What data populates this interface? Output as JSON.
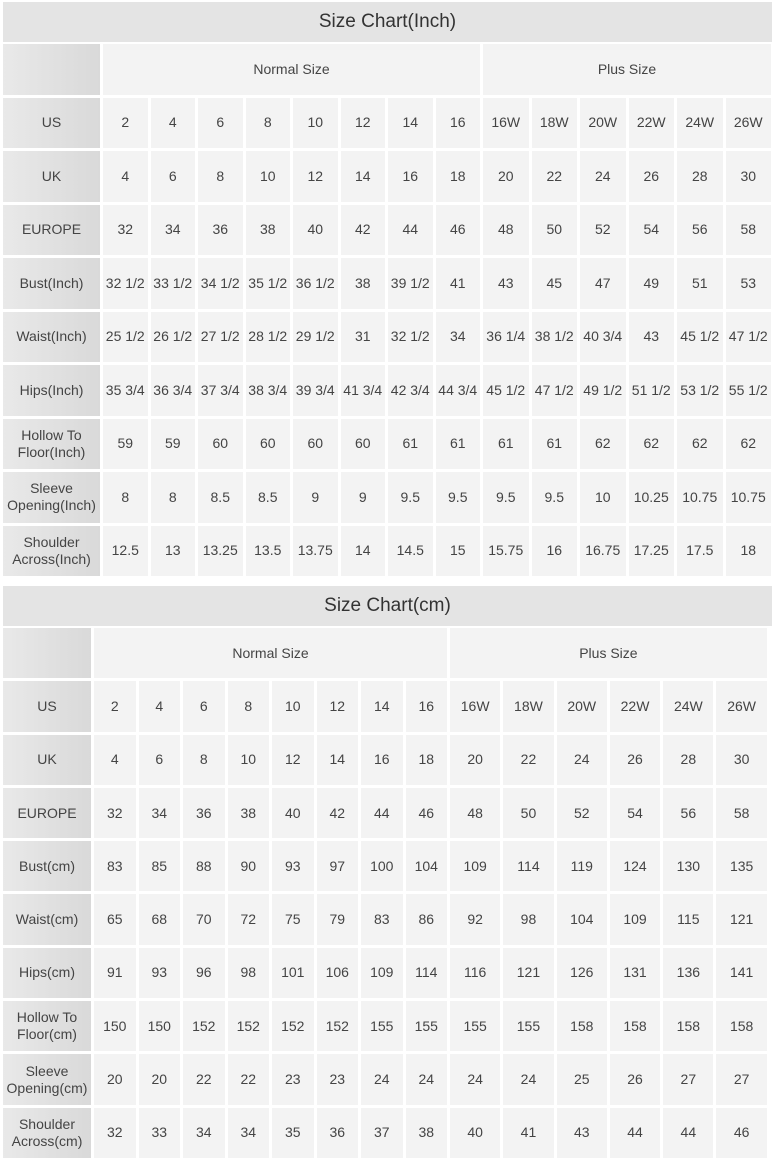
{
  "tables": [
    {
      "title": "Size Chart(Inch)",
      "normal_label": "Normal Size",
      "plus_label": "Plus Size",
      "rows": [
        {
          "label": "US",
          "values": [
            "2",
            "4",
            "6",
            "8",
            "10",
            "12",
            "14",
            "16",
            "16W",
            "18W",
            "20W",
            "22W",
            "24W",
            "26W"
          ]
        },
        {
          "label": "UK",
          "values": [
            "4",
            "6",
            "8",
            "10",
            "12",
            "14",
            "16",
            "18",
            "20",
            "22",
            "24",
            "26",
            "28",
            "30"
          ]
        },
        {
          "label": "EUROPE",
          "values": [
            "32",
            "34",
            "36",
            "38",
            "40",
            "42",
            "44",
            "46",
            "48",
            "50",
            "52",
            "54",
            "56",
            "58"
          ]
        },
        {
          "label": "Bust(Inch)",
          "values": [
            "32 1/2",
            "33 1/2",
            "34 1/2",
            "35 1/2",
            "36 1/2",
            "38",
            "39 1/2",
            "41",
            "43",
            "45",
            "47",
            "49",
            "51",
            "53"
          ]
        },
        {
          "label": "Waist(Inch)",
          "values": [
            "25 1/2",
            "26 1/2",
            "27 1/2",
            "28 1/2",
            "29 1/2",
            "31",
            "32 1/2",
            "34",
            "36 1/4",
            "38 1/2",
            "40 3/4",
            "43",
            "45 1/2",
            "47 1/2"
          ]
        },
        {
          "label": "Hips(Inch)",
          "values": [
            "35 3/4",
            "36 3/4",
            "37 3/4",
            "38 3/4",
            "39 3/4",
            "41 3/4",
            "42 3/4",
            "44 3/4",
            "45 1/2",
            "47 1/2",
            "49 1/2",
            "51 1/2",
            "53 1/2",
            "55 1/2"
          ]
        },
        {
          "label": "Hollow To Floor(Inch)",
          "values": [
            "59",
            "59",
            "60",
            "60",
            "60",
            "60",
            "61",
            "61",
            "61",
            "61",
            "62",
            "62",
            "62",
            "62"
          ]
        },
        {
          "label": "Sleeve Opening(Inch)",
          "values": [
            "8",
            "8",
            "8.5",
            "8.5",
            "9",
            "9",
            "9.5",
            "9.5",
            "9.5",
            "9.5",
            "10",
            "10.25",
            "10.75",
            "10.75"
          ]
        },
        {
          "label": "Shoulder Across(Inch)",
          "values": [
            "12.5",
            "13",
            "13.25",
            "13.5",
            "13.75",
            "14",
            "14.5",
            "15",
            "15.75",
            "16",
            "16.75",
            "17.25",
            "17.5",
            "18"
          ]
        }
      ]
    },
    {
      "title": "Size Chart(cm)",
      "normal_label": "Normal Size",
      "plus_label": "Plus Size",
      "rows": [
        {
          "label": "US",
          "values": [
            "2",
            "4",
            "6",
            "8",
            "10",
            "12",
            "14",
            "16",
            "16W",
            "18W",
            "20W",
            "22W",
            "24W",
            "26W"
          ]
        },
        {
          "label": "UK",
          "values": [
            "4",
            "6",
            "8",
            "10",
            "12",
            "14",
            "16",
            "18",
            "20",
            "22",
            "24",
            "26",
            "28",
            "30"
          ]
        },
        {
          "label": "EUROPE",
          "values": [
            "32",
            "34",
            "36",
            "38",
            "40",
            "42",
            "44",
            "46",
            "48",
            "50",
            "52",
            "54",
            "56",
            "58"
          ]
        },
        {
          "label": "Bust(cm)",
          "values": [
            "83",
            "85",
            "88",
            "90",
            "93",
            "97",
            "100",
            "104",
            "109",
            "114",
            "119",
            "124",
            "130",
            "135"
          ]
        },
        {
          "label": "Waist(cm)",
          "values": [
            "65",
            "68",
            "70",
            "72",
            "75",
            "79",
            "83",
            "86",
            "92",
            "98",
            "104",
            "109",
            "115",
            "121"
          ]
        },
        {
          "label": "Hips(cm)",
          "values": [
            "91",
            "93",
            "96",
            "98",
            "101",
            "106",
            "109",
            "114",
            "116",
            "121",
            "126",
            "131",
            "136",
            "141"
          ]
        },
        {
          "label": "Hollow To Floor(cm)",
          "values": [
            "150",
            "150",
            "152",
            "152",
            "152",
            "152",
            "155",
            "155",
            "155",
            "155",
            "158",
            "158",
            "158",
            "158"
          ]
        },
        {
          "label": "Sleeve Opening(cm)",
          "values": [
            "20",
            "20",
            "22",
            "22",
            "23",
            "23",
            "24",
            "24",
            "24",
            "24",
            "25",
            "26",
            "27",
            "27"
          ]
        },
        {
          "label": "Shoulder Across(cm)",
          "values": [
            "32",
            "33",
            "34",
            "34",
            "35",
            "36",
            "37",
            "38",
            "40",
            "41",
            "43",
            "44",
            "44",
            "46"
          ]
        }
      ]
    }
  ]
}
